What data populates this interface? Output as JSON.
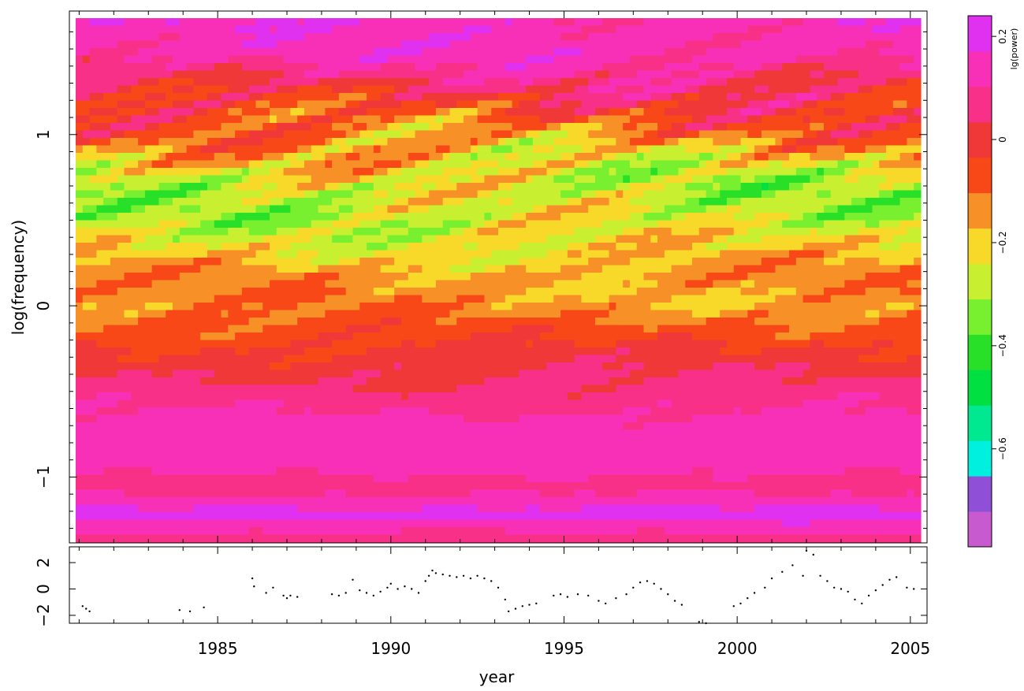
{
  "chart_data": [
    {
      "type": "heatmap",
      "title": "",
      "xlabel": "year",
      "ylabel": "log(frequency)",
      "xlim": [
        1980.9,
        2005.3
      ],
      "ylim": [
        -1.38,
        1.68
      ],
      "x_ticks": [
        1985,
        1990,
        1995,
        2000,
        2005
      ],
      "x_tick_labels": [
        "1985",
        "1990",
        "1995",
        "2000",
        "2005"
      ],
      "y_ticks": [
        -1,
        0,
        1
      ],
      "y_tick_labels": [
        "−1",
        "0",
        "1"
      ],
      "colorbar": {
        "label": "lg(power)",
        "range": [
          -0.79,
          0.24
        ],
        "ticks": [
          -0.6,
          -0.4,
          -0.2,
          0,
          0.2
        ],
        "tick_labels": [
          "−0.6",
          "−0.4",
          "−0.2",
          "0",
          "0.2"
        ],
        "colors": [
          "#c85ad0",
          "#8f4fd6",
          "#00f0e0",
          "#00e890",
          "#00e040",
          "#28e028",
          "#78f030",
          "#c8f030",
          "#f8d828",
          "#f89028",
          "#f84818",
          "#f03838",
          "#f83088",
          "#f830b8",
          "#e030f0"
        ]
      },
      "bands": [
        {
          "y": 1.48,
          "class": 13,
          "amp": 1.0
        },
        {
          "y": 1.22,
          "class": 11,
          "amp": 2.3
        },
        {
          "y": 0.96,
          "class": 9,
          "amp": 2.8
        },
        {
          "y": 0.72,
          "class": 7,
          "amp": 2.6
        },
        {
          "y": 0.5,
          "class": 7,
          "amp": 2.2
        },
        {
          "y": 0.32,
          "class": 8,
          "amp": 1.8
        },
        {
          "y": 0.16,
          "class": 9,
          "amp": 1.5
        },
        {
          "y": 0.0,
          "class": 9,
          "amp": 1.3
        },
        {
          "y": -0.14,
          "class": 10,
          "amp": 1.0
        },
        {
          "y": -0.32,
          "class": 11,
          "amp": 0.9
        },
        {
          "y": -0.52,
          "class": 12,
          "amp": 0.7
        },
        {
          "y": -0.72,
          "class": 13,
          "amp": 0.5
        },
        {
          "y": -0.92,
          "class": 13,
          "amp": 0.4
        },
        {
          "y": -1.06,
          "class": 12,
          "amp": 0.4
        },
        {
          "y": -1.22,
          "class": 14,
          "amp": 0.3
        },
        {
          "y": -1.36,
          "class": 12,
          "amp": 0.4
        }
      ]
    },
    {
      "type": "scatter",
      "ylim": [
        -2.6,
        3.2
      ],
      "y_ticks": [
        -2,
        0,
        2
      ],
      "y_tick_labels": [
        "−2",
        "0",
        "2"
      ],
      "series": [
        {
          "x": [
            1981.1,
            1981.2,
            1981.3,
            1983.9,
            1984.2,
            1984.6,
            1986.0,
            1986.05,
            1986.4,
            1986.6,
            1986.9,
            1987.0,
            1987.1,
            1987.3,
            1988.3,
            1988.5,
            1988.7,
            1988.9,
            1989.1,
            1989.3,
            1989.5,
            1989.7,
            1989.9,
            1990.0,
            1990.2,
            1990.4,
            1990.6,
            1990.8,
            1991.0,
            1991.1,
            1991.2,
            1991.3,
            1991.5,
            1991.7,
            1991.9,
            1992.1,
            1992.3,
            1992.5,
            1992.7,
            1992.9,
            1993.1,
            1993.3,
            1993.4,
            1993.6,
            1993.8,
            1994.0,
            1994.2,
            1994.7,
            1994.9,
            1995.1,
            1995.4,
            1995.7,
            1996.0,
            1996.2,
            1996.5,
            1996.8,
            1997.0,
            1997.2,
            1997.4,
            1997.6,
            1997.8,
            1998.0,
            1998.2,
            1998.4,
            1998.9,
            1999.1,
            1999.9,
            2000.1,
            2000.3,
            2000.5,
            2000.8,
            2001.0,
            2001.3,
            2001.6,
            2001.9,
            2002.0,
            2002.2,
            2002.4,
            2002.6,
            2002.8,
            2003.0,
            2003.2,
            2003.4,
            2003.6,
            2003.8,
            2004.0,
            2004.2,
            2004.4,
            2004.6,
            2004.9,
            2005.1
          ],
          "y": [
            -1.3,
            -1.5,
            -1.7,
            -1.6,
            -1.7,
            -1.4,
            0.8,
            0.2,
            -0.3,
            0.1,
            -0.5,
            -0.7,
            -0.5,
            -0.6,
            -0.4,
            -0.5,
            -0.3,
            0.7,
            -0.1,
            -0.3,
            -0.5,
            -0.2,
            0.1,
            0.4,
            0.0,
            0.2,
            0.0,
            -0.3,
            0.6,
            1.0,
            1.4,
            1.2,
            1.1,
            1.0,
            0.9,
            1.0,
            0.8,
            1.0,
            0.8,
            0.6,
            0.1,
            -0.8,
            -1.7,
            -1.5,
            -1.3,
            -1.2,
            -1.1,
            -0.5,
            -0.4,
            -0.6,
            -0.4,
            -0.5,
            -0.9,
            -1.1,
            -0.7,
            -0.4,
            0.1,
            0.5,
            0.6,
            0.4,
            0.0,
            -0.4,
            -0.9,
            -1.2,
            -2.5,
            -2.6,
            -1.3,
            -1.1,
            -0.7,
            -0.3,
            0.1,
            0.8,
            1.3,
            1.8,
            1.0,
            2.9,
            2.6,
            1.0,
            0.6,
            0.1,
            0.0,
            -0.2,
            -0.8,
            -1.1,
            -0.5,
            -0.1,
            0.3,
            0.7,
            0.9,
            0.1,
            0.0
          ]
        }
      ]
    }
  ]
}
